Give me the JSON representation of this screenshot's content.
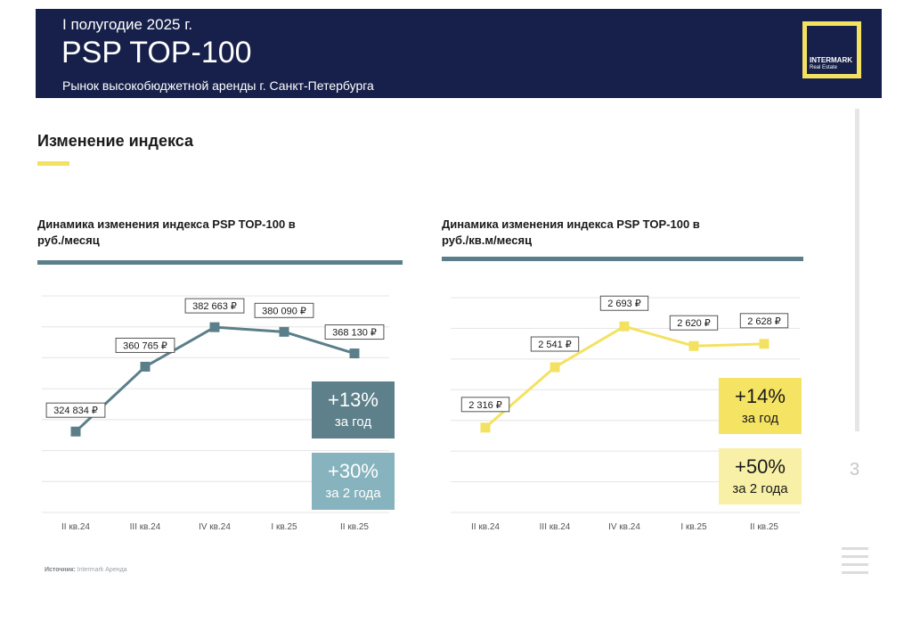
{
  "header": {
    "period": "I полугодие 2025 г.",
    "title": "PSP TOP-100",
    "subtitle": "Рынок высокобюджетной аренды г. Санкт-Петербурга"
  },
  "logo": {
    "name": "INTERMARK",
    "sub": "Real Estate"
  },
  "section": {
    "title": "Изменение индекса"
  },
  "source": {
    "label": "Источник:",
    "value": "Intermark Аренда"
  },
  "page_number": "3",
  "icons": {
    "menu": "menu-icon"
  },
  "colors": {
    "navy": "#17204a",
    "accent_yellow": "#f3e262",
    "teal_line": "#5b7f8a",
    "teal_badge_dark": "#5d808a",
    "teal_badge_light": "#86b3bd",
    "yellow_line": "#f3e262",
    "yellow_badge_dark": "#f5e463",
    "yellow_badge_light": "#f8f0a6"
  },
  "chart_data": [
    {
      "type": "line",
      "title": "Динамика изменения индекса PSP TOP-100 в руб./месяц",
      "title_line1": "Динамика изменения индекса PSP TOP-100 в",
      "title_line2": "руб./месяц",
      "categories": [
        "II кв.24",
        "III кв.24",
        "IV кв.24",
        "I кв.25",
        "II кв.25"
      ],
      "series": [
        {
          "values": [
            324834,
            360765,
            382663,
            380090,
            368130
          ]
        }
      ],
      "data_labels": [
        "324 834 ₽",
        "360 765 ₽",
        "382 663 ₽",
        "380 090 ₽",
        "368 130 ₽"
      ],
      "ylim": [
        280000,
        400000
      ],
      "grid": true,
      "legend": "none",
      "color": "#5b7f8a",
      "badges": [
        {
          "big": "+13%",
          "small": "за год"
        },
        {
          "big": "+30%",
          "small": "за 2 года"
        }
      ]
    },
    {
      "type": "line",
      "title": "Динамика изменения индекса PSP TOP-100 в руб./кв.м/месяц",
      "title_line1": "Динамика изменения индекса PSP TOP-100 в",
      "title_line2": "руб./кв.м/месяц",
      "categories": [
        "II кв.24",
        "III кв.24",
        "IV кв.24",
        "I кв.25",
        "II кв.25"
      ],
      "series": [
        {
          "values": [
            2316,
            2541,
            2693,
            2620,
            2628
          ]
        }
      ],
      "data_labels": [
        "2 316 ₽",
        "2 541 ₽",
        "2 693 ₽",
        "2 620 ₽",
        "2 628 ₽"
      ],
      "ylim": [
        2000,
        2800
      ],
      "grid": true,
      "legend": "none",
      "color": "#f3e262",
      "badges": [
        {
          "big": "+14%",
          "small": "за год"
        },
        {
          "big": "+50%",
          "small": "за 2 года"
        }
      ]
    }
  ]
}
